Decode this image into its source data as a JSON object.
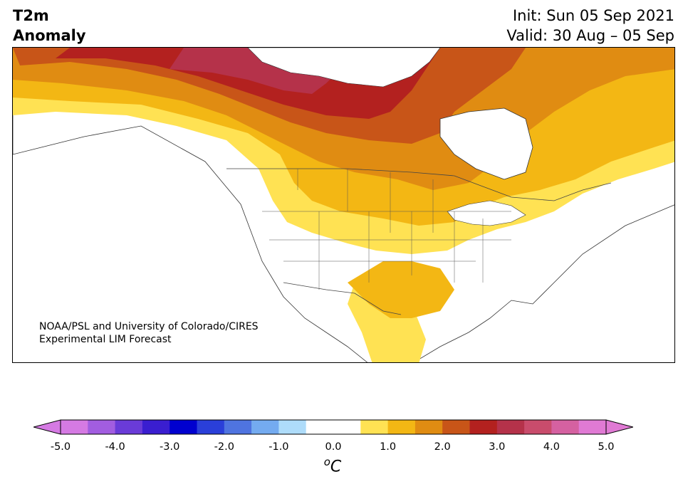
{
  "header": {
    "title_line1": "T2m",
    "title_line2": "Anomaly",
    "init": "Init: Sun 05 Sep 2021",
    "valid": "Valid: 30 Aug – 05 Sep"
  },
  "credit": {
    "line1": "NOAA/PSL and University of Colorado/CIRES",
    "line2": "Experimental LIM Forecast"
  },
  "colorbar": {
    "unit": "°C",
    "unit_base": "C",
    "unit_sup": "o",
    "ticks": [
      "-5.0",
      "-4.0",
      "-3.0",
      "-2.0",
      "-1.0",
      "0.0",
      "1.0",
      "2.0",
      "3.0",
      "4.0",
      "5.0"
    ],
    "colors": [
      "#d57ae3",
      "#a25de0",
      "#6a3bd8",
      "#3a1ed0",
      "#0000cf",
      "#2a3fd9",
      "#4f74e0",
      "#74abf0",
      "#aedcfa",
      "#ffffff",
      "#ffffff",
      "#ffe253",
      "#f3b714",
      "#e08c12",
      "#c85518",
      "#b3211f",
      "#b5324a",
      "#c94c6c",
      "#d561a1",
      "#e07ad4"
    ],
    "under_color": "#d57ae3",
    "over_color": "#e07ad4"
  }
}
